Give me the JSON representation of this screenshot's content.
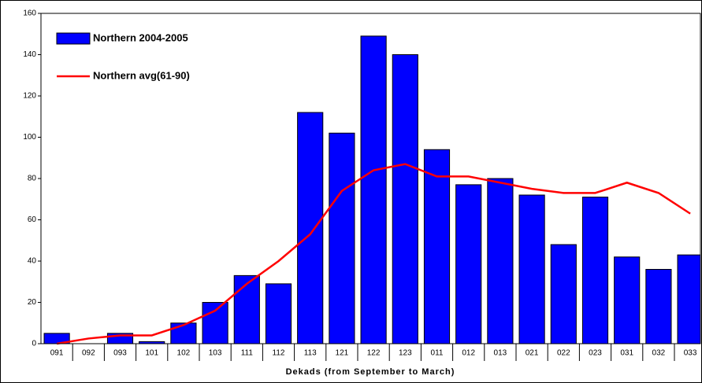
{
  "chart_data": {
    "type": "bar",
    "x_label": "Dekads (from September to March)",
    "categories": [
      "091",
      "092",
      "093",
      "101",
      "102",
      "103",
      "111",
      "112",
      "113",
      "121",
      "122",
      "123",
      "011",
      "012",
      "013",
      "021",
      "022",
      "023",
      "031",
      "032",
      "033"
    ],
    "series": [
      {
        "name": "Northern 2004-2005",
        "type": "bar",
        "color": "#0000ff",
        "values": [
          5,
          0,
          5,
          1,
          10,
          20,
          33,
          29,
          112,
          102,
          149,
          140,
          94,
          77,
          80,
          72,
          48,
          71,
          42,
          36,
          43
        ]
      },
      {
        "name": "Northern avg(61-90)",
        "type": "line",
        "color": "#ff0000",
        "values": [
          0,
          2.5,
          4,
          4,
          9,
          16,
          29,
          40,
          53,
          74,
          84,
          87,
          81,
          81,
          78,
          75,
          73,
          73,
          78,
          73,
          63
        ]
      }
    ],
    "ylim": [
      0,
      160
    ],
    "yticks": [
      0,
      20,
      40,
      60,
      80,
      100,
      120,
      140,
      160
    ],
    "grid": false,
    "legend": "top-left"
  }
}
